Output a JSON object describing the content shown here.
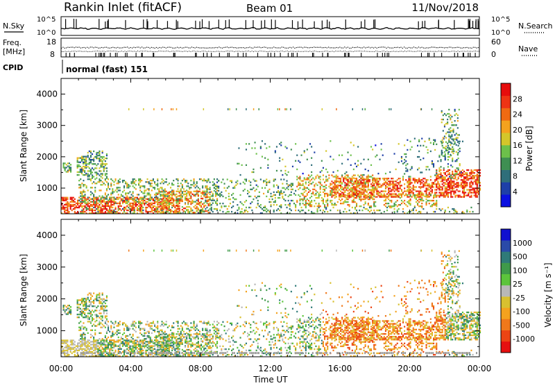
{
  "header": {
    "station": "Rankin Inlet (fitACF)",
    "beam": "Beam 01",
    "date": "11/Nov/2018"
  },
  "noise_panel": {
    "left_label": "N.Sky",
    "right_label": "N.Search",
    "right_style": "dotted",
    "left_ticks": [
      "10^5",
      "10^0"
    ],
    "right_ticks": [
      "10^5",
      "10^0"
    ]
  },
  "freq_panel": {
    "left_label_line1": "Freq.",
    "left_label_line2": "[MHz]",
    "left_ticks": [
      "18",
      "8"
    ],
    "right_label": "Nave",
    "right_style": "dotted",
    "right_ticks": [
      "60",
      "0"
    ]
  },
  "cpid_panel": {
    "label": "CPID",
    "text": "normal (fast) 151"
  },
  "chart_data": [
    {
      "type": "heatmap",
      "parameter": "power",
      "ylabel": "Slant Range [km]",
      "ylim": [
        180,
        4500
      ],
      "yticks": [
        1000,
        2000,
        3000,
        4000
      ],
      "xlim_hours": [
        0,
        24
      ],
      "colorbar": {
        "label": "Power [dB]",
        "range": [
          0,
          32
        ],
        "ticks": [
          "4",
          "8",
          "12",
          "16",
          "20",
          "24",
          "28"
        ],
        "colors": [
          "#0b10e0",
          "#1e3fa8",
          "#2f6e7a",
          "#3f8f52",
          "#6cc04a",
          "#d4c62a",
          "#f4a21e",
          "#f06a12",
          "#ee3414",
          "#e60c0c"
        ]
      }
    },
    {
      "type": "heatmap",
      "parameter": "velocity",
      "ylabel": "Slant Range [km]",
      "ylim": [
        180,
        4500
      ],
      "yticks": [
        1000,
        2000,
        3000,
        4000
      ],
      "xlim_hours": [
        0,
        24
      ],
      "xticks": [
        "00:00",
        "04:00",
        "08:00",
        "12:00",
        "16:00",
        "20:00",
        "00:00"
      ],
      "xlabel": "Time UT",
      "colorbar": {
        "label": "Velocity [m s⁻¹]",
        "ticks": [
          "1000",
          "500",
          "100",
          "25",
          "-25",
          "-100",
          "-500",
          "-1000"
        ],
        "colors": [
          "#1010d0",
          "#2a4aa8",
          "#2f7a78",
          "#3f9a4a",
          "#5cc43c",
          "#b8b8b8",
          "#d8c030",
          "#f4a21e",
          "#f0781a",
          "#ec4414",
          "#e61010"
        ]
      }
    }
  ]
}
